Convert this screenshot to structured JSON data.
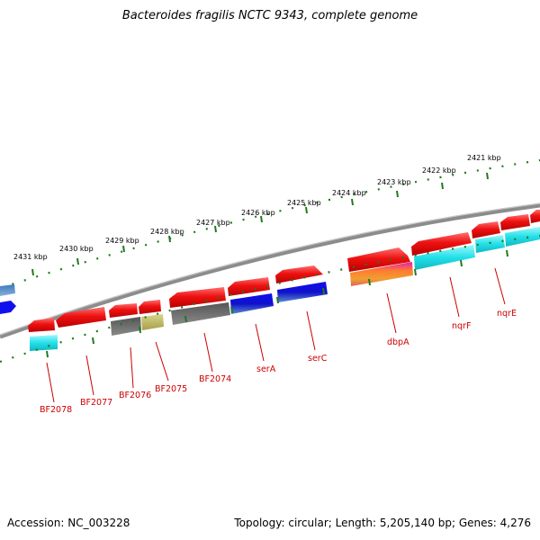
{
  "title": "Bacteroides fragilis NCTC 9343, complete genome",
  "footer": {
    "accession": "Accession: NC_003228",
    "summary": "Topology: circular; Length: 5,205,140 bp; Genes: 4,276"
  },
  "colors": {
    "backbone": "#8c8c8c",
    "ticks": "#1e7a1e",
    "gene_red": "#ee1111",
    "cds_cyan": "#22e0e8",
    "cds_blue": "#1010dd",
    "cds_grey": "#6a6a6a",
    "cds_olive": "#c4bd66",
    "label": "#cc0000"
  },
  "kbp_labels": [
    "2431 kbp",
    "2430 kbp",
    "2429 kbp",
    "2428 kbp",
    "2427 kbp",
    "2426 kbp",
    "2425 kbp",
    "2424 kbp",
    "2423 kbp",
    "2422 kbp",
    "2421 kbp"
  ],
  "gene_labels": [
    "BF2078",
    "BF2077",
    "BF2076",
    "BF2075",
    "BF2074",
    "serA",
    "serC",
    "dbpA",
    "nqrF",
    "nqrE"
  ]
}
